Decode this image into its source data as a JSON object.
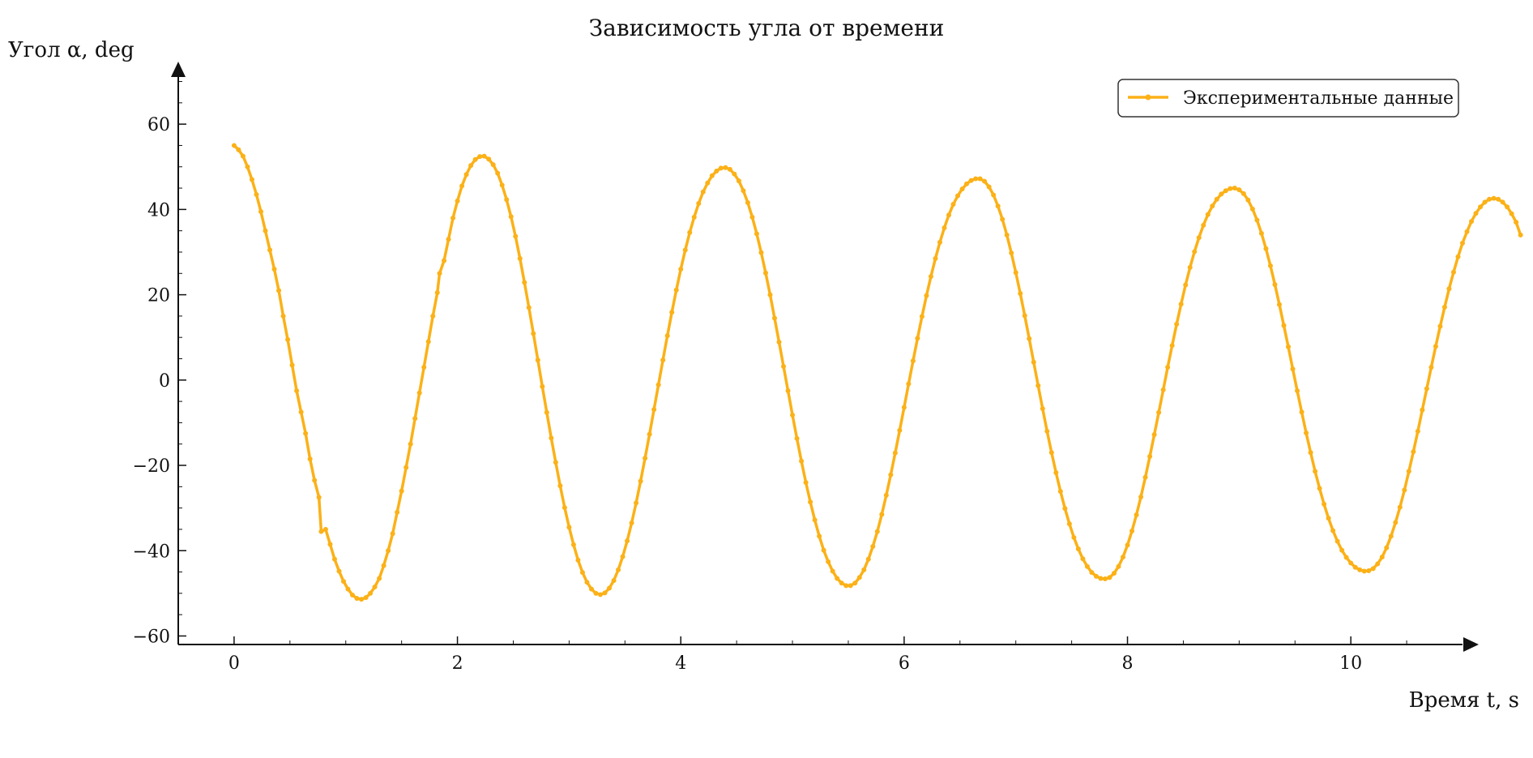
{
  "chart_data": {
    "type": "line",
    "title": "Зависимость угла от времени",
    "xlabel": "Время t, s",
    "ylabel": "Угол α, deg",
    "xlim": [
      -0.5,
      11.0
    ],
    "ylim": [
      -62,
      72
    ],
    "x_ticks": [
      0,
      2,
      4,
      6,
      8,
      10
    ],
    "x_tick_labels": [
      "0",
      "2",
      "4",
      "6",
      "8",
      "10"
    ],
    "y_ticks": [
      -60,
      -40,
      -20,
      0,
      20,
      40,
      60
    ],
    "y_tick_labels": [
      "−60",
      "−40",
      "−20",
      "0",
      "20",
      "40",
      "60"
    ],
    "grid": false,
    "legend_position": "top-right",
    "series": [
      {
        "name": "Экспериментальные данные",
        "color": "#FBB117",
        "points": [
          [
            0.0,
            55.0
          ],
          [
            0.04,
            54.0
          ],
          [
            0.08,
            52.5
          ],
          [
            0.12,
            50.0
          ],
          [
            0.16,
            47.0
          ],
          [
            0.2,
            43.5
          ],
          [
            0.24,
            39.5
          ],
          [
            0.28,
            35.0
          ],
          [
            0.32,
            30.5
          ],
          [
            0.36,
            26.0
          ],
          [
            0.4,
            21.0
          ],
          [
            0.44,
            15.0
          ],
          [
            0.48,
            9.5
          ],
          [
            0.52,
            3.5
          ],
          [
            0.56,
            -2.5
          ],
          [
            0.6,
            -7.5
          ],
          [
            0.64,
            -12.5
          ],
          [
            0.68,
            -18.5
          ],
          [
            0.72,
            -23.5
          ],
          [
            0.76,
            -27.5
          ],
          [
            0.78,
            -35.5
          ],
          [
            0.82,
            -35.0
          ],
          [
            0.86,
            -38.5
          ],
          [
            0.9,
            -42.0
          ],
          [
            0.94,
            -44.8
          ],
          [
            0.98,
            -47.2
          ],
          [
            1.02,
            -49.0
          ],
          [
            1.06,
            -50.4
          ],
          [
            1.1,
            -51.2
          ],
          [
            1.14,
            -51.4
          ],
          [
            1.18,
            -51.0
          ],
          [
            1.22,
            -50.0
          ],
          [
            1.26,
            -48.5
          ],
          [
            1.3,
            -46.5
          ],
          [
            1.34,
            -43.5
          ],
          [
            1.38,
            -40.0
          ],
          [
            1.42,
            -36.0
          ],
          [
            1.46,
            -31.0
          ],
          [
            1.5,
            -26.0
          ],
          [
            1.54,
            -20.5
          ],
          [
            1.58,
            -15.0
          ],
          [
            1.62,
            -9.0
          ],
          [
            1.66,
            -3.0
          ],
          [
            1.7,
            3.0
          ],
          [
            1.74,
            9.0
          ],
          [
            1.78,
            15.0
          ],
          [
            1.82,
            20.5
          ],
          [
            1.84,
            25.0
          ],
          [
            1.88,
            28.0
          ],
          [
            1.92,
            33.0
          ],
          [
            1.96,
            38.0
          ],
          [
            2.0,
            42.0
          ],
          [
            2.04,
            45.5
          ],
          [
            2.08,
            48.2
          ],
          [
            2.12,
            50.3
          ],
          [
            2.16,
            51.7
          ],
          [
            2.2,
            52.4
          ],
          [
            2.24,
            52.5
          ],
          [
            2.28,
            51.8
          ],
          [
            2.32,
            50.5
          ],
          [
            2.36,
            48.5
          ],
          [
            2.4,
            45.7
          ],
          [
            2.44,
            42.3
          ],
          [
            2.48,
            38.3
          ],
          [
            2.52,
            33.7
          ],
          [
            2.56,
            28.5
          ],
          [
            2.6,
            22.9
          ],
          [
            2.64,
            17.0
          ],
          [
            2.68,
            10.9
          ],
          [
            2.72,
            4.7
          ],
          [
            2.76,
            -1.5
          ],
          [
            2.8,
            -7.6
          ],
          [
            2.84,
            -13.6
          ],
          [
            2.88,
            -19.3
          ],
          [
            2.92,
            -24.8
          ],
          [
            2.96,
            -29.9
          ],
          [
            3.0,
            -34.5
          ],
          [
            3.04,
            -38.6
          ],
          [
            3.08,
            -42.2
          ],
          [
            3.12,
            -45.1
          ],
          [
            3.16,
            -47.4
          ],
          [
            3.2,
            -49.0
          ],
          [
            3.24,
            -50.0
          ],
          [
            3.28,
            -50.3
          ],
          [
            3.32,
            -49.9
          ],
          [
            3.36,
            -48.8
          ],
          [
            3.4,
            -47.0
          ],
          [
            3.44,
            -44.5
          ],
          [
            3.48,
            -41.4
          ],
          [
            3.52,
            -37.7
          ],
          [
            3.56,
            -33.5
          ],
          [
            3.6,
            -28.8
          ],
          [
            3.64,
            -23.7
          ],
          [
            3.68,
            -18.3
          ],
          [
            3.72,
            -12.7
          ],
          [
            3.76,
            -6.9
          ],
          [
            3.8,
            -1.1
          ],
          [
            3.84,
            4.7
          ],
          [
            3.88,
            10.4
          ],
          [
            3.92,
            15.9
          ],
          [
            3.96,
            21.1
          ],
          [
            4.0,
            26.0
          ],
          [
            4.04,
            30.5
          ],
          [
            4.08,
            34.6
          ],
          [
            4.12,
            38.2
          ],
          [
            4.16,
            41.4
          ],
          [
            4.2,
            44.1
          ],
          [
            4.24,
            46.2
          ],
          [
            4.28,
            47.9
          ],
          [
            4.32,
            49.0
          ],
          [
            4.36,
            49.7
          ],
          [
            4.4,
            49.8
          ],
          [
            4.44,
            49.4
          ],
          [
            4.48,
            48.3
          ],
          [
            4.52,
            46.7
          ],
          [
            4.56,
            44.4
          ],
          [
            4.6,
            41.6
          ],
          [
            4.64,
            38.2
          ],
          [
            4.68,
            34.3
          ],
          [
            4.72,
            29.9
          ],
          [
            4.76,
            25.1
          ],
          [
            4.8,
            20.0
          ],
          [
            4.84,
            14.5
          ],
          [
            4.88,
            8.9
          ],
          [
            4.92,
            3.2
          ],
          [
            4.96,
            -2.5
          ],
          [
            5.0,
            -8.2
          ],
          [
            5.04,
            -13.7
          ],
          [
            5.08,
            -19.0
          ],
          [
            5.12,
            -24.0
          ],
          [
            5.16,
            -28.6
          ],
          [
            5.2,
            -32.8
          ],
          [
            5.24,
            -36.6
          ],
          [
            5.28,
            -39.9
          ],
          [
            5.32,
            -42.6
          ],
          [
            5.36,
            -44.8
          ],
          [
            5.4,
            -46.5
          ],
          [
            5.44,
            -47.6
          ],
          [
            5.48,
            -48.2
          ],
          [
            5.52,
            -48.2
          ],
          [
            5.56,
            -47.6
          ],
          [
            5.6,
            -46.3
          ],
          [
            5.64,
            -44.5
          ],
          [
            5.68,
            -42.0
          ],
          [
            5.72,
            -39.0
          ],
          [
            5.76,
            -35.5
          ],
          [
            5.8,
            -31.5
          ],
          [
            5.84,
            -27.0
          ],
          [
            5.88,
            -22.2
          ],
          [
            5.92,
            -17.1
          ],
          [
            5.96,
            -11.8
          ],
          [
            6.0,
            -6.4
          ],
          [
            6.04,
            -0.9
          ],
          [
            6.08,
            4.5
          ],
          [
            6.12,
            9.8
          ],
          [
            6.16,
            14.9
          ],
          [
            6.2,
            19.8
          ],
          [
            6.24,
            24.3
          ],
          [
            6.28,
            28.5
          ],
          [
            6.32,
            32.3
          ],
          [
            6.36,
            35.7
          ],
          [
            6.4,
            38.7
          ],
          [
            6.44,
            41.2
          ],
          [
            6.48,
            43.2
          ],
          [
            6.52,
            44.8
          ],
          [
            6.56,
            46.0
          ],
          [
            6.6,
            46.8
          ],
          [
            6.64,
            47.2
          ],
          [
            6.68,
            47.2
          ],
          [
            6.72,
            46.6
          ],
          [
            6.76,
            45.3
          ],
          [
            6.8,
            43.4
          ],
          [
            6.84,
            40.8
          ],
          [
            6.88,
            37.7
          ],
          [
            6.92,
            34.0
          ],
          [
            6.96,
            29.8
          ],
          [
            7.0,
            25.2
          ],
          [
            7.04,
            20.3
          ],
          [
            7.08,
            15.1
          ],
          [
            7.12,
            9.7
          ],
          [
            7.16,
            4.2
          ],
          [
            7.2,
            -1.3
          ],
          [
            7.24,
            -6.7
          ],
          [
            7.28,
            -12.0
          ],
          [
            7.32,
            -17.0
          ],
          [
            7.36,
            -21.7
          ],
          [
            7.4,
            -26.1
          ],
          [
            7.44,
            -30.1
          ],
          [
            7.48,
            -33.7
          ],
          [
            7.52,
            -36.9
          ],
          [
            7.56,
            -39.6
          ],
          [
            7.6,
            -41.9
          ],
          [
            7.64,
            -43.7
          ],
          [
            7.68,
            -45.1
          ],
          [
            7.72,
            -46.0
          ],
          [
            7.76,
            -46.5
          ],
          [
            7.8,
            -46.6
          ],
          [
            7.84,
            -46.3
          ],
          [
            7.88,
            -45.3
          ],
          [
            7.92,
            -43.7
          ],
          [
            7.96,
            -41.5
          ],
          [
            8.0,
            -38.7
          ],
          [
            8.04,
            -35.4
          ],
          [
            8.08,
            -31.6
          ],
          [
            8.12,
            -27.4
          ],
          [
            8.16,
            -22.8
          ],
          [
            8.2,
            -17.9
          ],
          [
            8.24,
            -12.8
          ],
          [
            8.28,
            -7.6
          ],
          [
            8.32,
            -2.3
          ],
          [
            8.36,
            3.0
          ],
          [
            8.4,
            8.1
          ],
          [
            8.44,
            13.1
          ],
          [
            8.48,
            17.8
          ],
          [
            8.52,
            22.3
          ],
          [
            8.56,
            26.4
          ],
          [
            8.6,
            30.1
          ],
          [
            8.64,
            33.4
          ],
          [
            8.68,
            36.3
          ],
          [
            8.72,
            38.8
          ],
          [
            8.76,
            40.8
          ],
          [
            8.8,
            42.4
          ],
          [
            8.84,
            43.6
          ],
          [
            8.88,
            44.4
          ],
          [
            8.92,
            44.9
          ],
          [
            8.96,
            45.0
          ],
          [
            9.0,
            44.6
          ],
          [
            9.04,
            43.7
          ],
          [
            9.08,
            42.2
          ],
          [
            9.12,
            40.1
          ],
          [
            9.16,
            37.5
          ],
          [
            9.2,
            34.4
          ],
          [
            9.24,
            30.8
          ],
          [
            9.28,
            26.8
          ],
          [
            9.32,
            22.4
          ],
          [
            9.36,
            17.7
          ],
          [
            9.4,
            12.8
          ],
          [
            9.44,
            7.8
          ],
          [
            9.48,
            2.6
          ],
          [
            9.52,
            -2.5
          ],
          [
            9.56,
            -7.5
          ],
          [
            9.6,
            -12.4
          ],
          [
            9.64,
            -17.0
          ],
          [
            9.68,
            -21.4
          ],
          [
            9.72,
            -25.4
          ],
          [
            9.76,
            -29.1
          ],
          [
            9.8,
            -32.4
          ],
          [
            9.84,
            -35.3
          ],
          [
            9.88,
            -37.8
          ],
          [
            9.92,
            -39.9
          ],
          [
            9.96,
            -41.6
          ],
          [
            10.0,
            -42.9
          ],
          [
            10.04,
            -43.9
          ],
          [
            10.08,
            -44.5
          ],
          [
            10.12,
            -44.8
          ],
          [
            10.16,
            -44.7
          ],
          [
            10.2,
            -44.2
          ],
          [
            10.24,
            -43.1
          ],
          [
            10.28,
            -41.5
          ],
          [
            10.32,
            -39.3
          ],
          [
            10.36,
            -36.6
          ],
          [
            10.4,
            -33.4
          ],
          [
            10.44,
            -29.8
          ],
          [
            10.48,
            -25.8
          ],
          [
            10.52,
            -21.4
          ],
          [
            10.56,
            -16.8
          ],
          [
            10.6,
            -12.0
          ],
          [
            10.64,
            -7.0
          ],
          [
            10.68,
            -2.0
          ],
          [
            10.72,
            3.0
          ],
          [
            10.76,
            7.9
          ],
          [
            10.8,
            12.6
          ],
          [
            10.84,
            17.1
          ],
          [
            10.88,
            21.4
          ],
          [
            10.92,
            25.3
          ],
          [
            10.96,
            28.9
          ],
          [
            11.0,
            32.1
          ],
          [
            11.04,
            34.8
          ],
          [
            11.08,
            37.2
          ],
          [
            11.12,
            39.1
          ],
          [
            11.16,
            40.6
          ],
          [
            11.2,
            41.7
          ],
          [
            11.24,
            42.4
          ],
          [
            11.28,
            42.6
          ],
          [
            11.32,
            42.4
          ],
          [
            11.36,
            41.7
          ],
          [
            11.4,
            40.6
          ],
          [
            11.44,
            39.0
          ],
          [
            11.48,
            37.0
          ],
          [
            11.52,
            34.0
          ]
        ]
      }
    ]
  }
}
